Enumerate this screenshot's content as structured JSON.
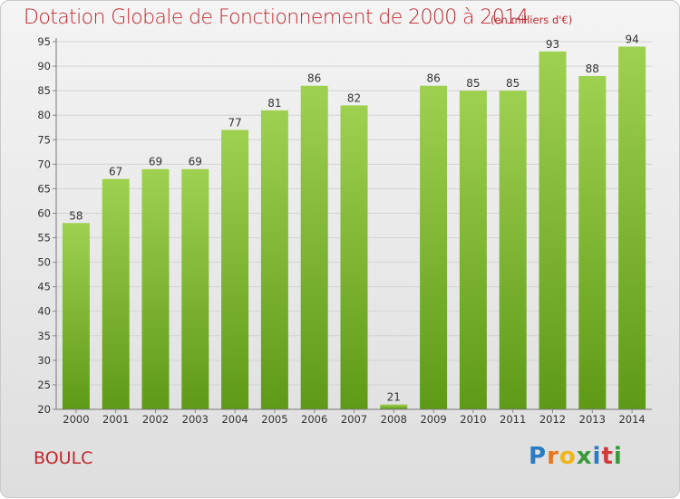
{
  "header": {
    "title": "Dotation Globale de Fonctionnement de 2000 à 2014",
    "unit_note": "(en milliers d'€)"
  },
  "footer": {
    "commune": "BOULC",
    "logo": {
      "text": "Proxiti",
      "letters": [
        {
          "ch": "P",
          "color": "#2a7dc4"
        },
        {
          "ch": "r",
          "color": "#e8761a"
        },
        {
          "ch": "o",
          "color": "#f0b418"
        },
        {
          "ch": "x",
          "color": "#3a9a3a"
        },
        {
          "ch": "i",
          "color": "#2a7dc4"
        },
        {
          "ch": "t",
          "color": "#d23a3a"
        },
        {
          "ch": "i",
          "color": "#3a9a3a"
        }
      ]
    }
  },
  "colors": {
    "bar_top": "#9fd150",
    "bar_bottom": "#5e9a16",
    "grid": "#d3d3d3",
    "text": "#333333",
    "accent": "#c1272d"
  },
  "chart_data": {
    "type": "bar",
    "title": "Dotation Globale de Fonctionnement de 2000 à 2014",
    "subtitle": "(en milliers d'€)",
    "xlabel": "",
    "ylabel": "",
    "categories": [
      "2000",
      "2001",
      "2002",
      "2003",
      "2004",
      "2005",
      "2006",
      "2007",
      "2008",
      "2009",
      "2010",
      "2011",
      "2012",
      "2013",
      "2014"
    ],
    "values": [
      58,
      67,
      69,
      69,
      77,
      81,
      86,
      82,
      21,
      86,
      85,
      85,
      93,
      88,
      94
    ],
    "ylim": [
      20,
      95
    ],
    "yticks": [
      20,
      25,
      30,
      35,
      40,
      45,
      50,
      55,
      60,
      65,
      70,
      75,
      80,
      85,
      90,
      95
    ],
    "grid": true,
    "data_labels": true
  }
}
